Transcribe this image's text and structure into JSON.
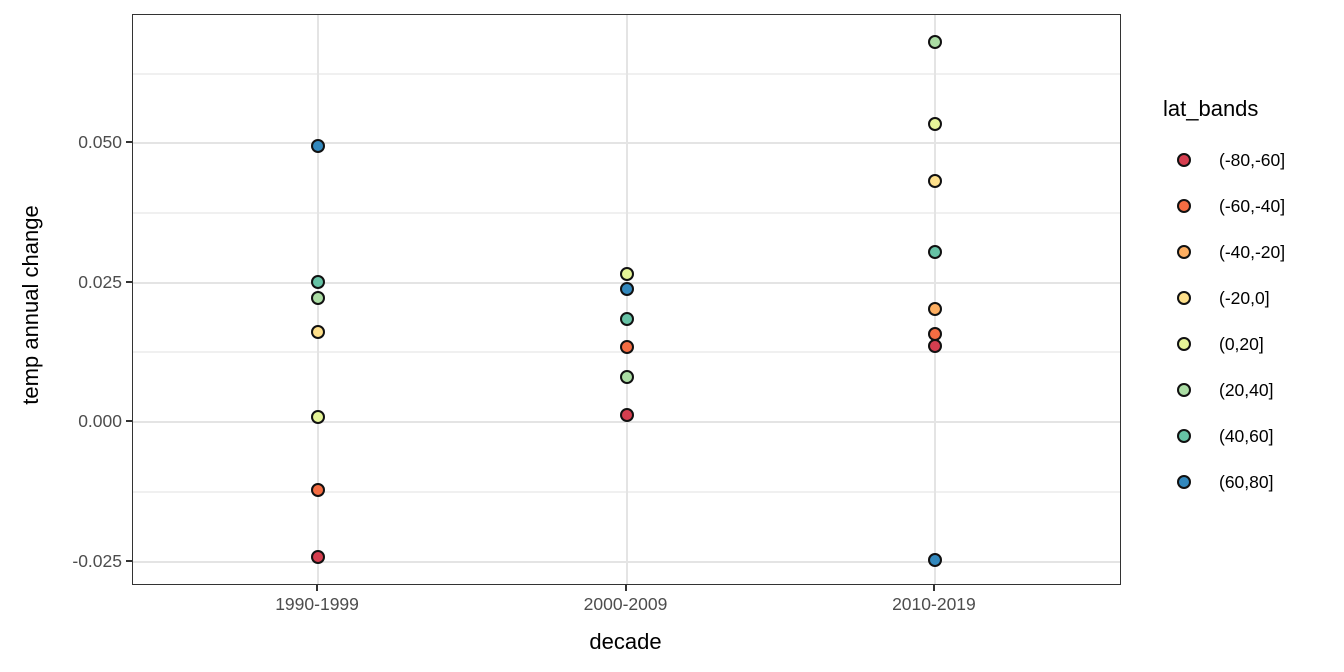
{
  "chart_data": {
    "type": "scatter",
    "title": "",
    "xlabel": "decade",
    "ylabel": "temp annual change",
    "legend_title": "lat_bands",
    "legend_position": "right",
    "grid": true,
    "categories": [
      "1990-1999",
      "2000-2009",
      "2010-2019"
    ],
    "ylim": [
      -0.029,
      0.073
    ],
    "y_major_ticks": [
      {
        "label": "0.050",
        "value": 0.05
      },
      {
        "label": "0.025",
        "value": 0.025
      },
      {
        "label": "0.000",
        "value": 0.0
      },
      {
        "label": "-0.025",
        "value": -0.025
      }
    ],
    "y_minor_values": [
      0.0625,
      0.0375,
      0.0125,
      -0.0125
    ],
    "series": [
      {
        "name": "(-80,-60]",
        "color": "#D53E4F",
        "points": [
          {
            "x": "1990-1999",
            "y": -0.0242
          },
          {
            "x": "2000-2009",
            "y": 0.0013
          },
          {
            "x": "2010-2019",
            "y": 0.0136
          }
        ]
      },
      {
        "name": "(-60,-40]",
        "color": "#F46D43",
        "points": [
          {
            "x": "1990-1999",
            "y": -0.0122
          },
          {
            "x": "2000-2009",
            "y": 0.0134
          },
          {
            "x": "2010-2019",
            "y": 0.0158
          }
        ]
      },
      {
        "name": "(-40,-20]",
        "color": "#FDAE61",
        "points": [
          {
            "x": "2010-2019",
            "y": 0.0203
          }
        ]
      },
      {
        "name": "(-20,0]",
        "color": "#FEE08B",
        "points": [
          {
            "x": "1990-1999",
            "y": 0.0161
          },
          {
            "x": "2010-2019",
            "y": 0.0432
          }
        ]
      },
      {
        "name": "(0,20]",
        "color": "#E6F598",
        "points": [
          {
            "x": "1990-1999",
            "y": 0.0009
          },
          {
            "x": "2000-2009",
            "y": 0.0265
          },
          {
            "x": "2010-2019",
            "y": 0.0534
          }
        ]
      },
      {
        "name": "(20,40]",
        "color": "#ABDDA4",
        "points": [
          {
            "x": "1990-1999",
            "y": 0.0222
          },
          {
            "x": "2000-2009",
            "y": 0.0081
          },
          {
            "x": "2010-2019",
            "y": 0.0681
          }
        ]
      },
      {
        "name": "(40,60]",
        "color": "#66C2A5",
        "points": [
          {
            "x": "1990-1999",
            "y": 0.0251
          },
          {
            "x": "2000-2009",
            "y": 0.0185
          },
          {
            "x": "2010-2019",
            "y": 0.0305
          }
        ]
      },
      {
        "name": "(60,80]",
        "color": "#3288BD",
        "points": [
          {
            "x": "1990-1999",
            "y": 0.0496
          },
          {
            "x": "2000-2009",
            "y": 0.0238
          },
          {
            "x": "2010-2019",
            "y": -0.0247
          }
        ]
      }
    ],
    "colors": {
      "grid_major": "#e4e4e4",
      "grid_minor": "#f0f0f0",
      "panel_border": "#333333",
      "tick_text": "#4d4d4d",
      "axis_title": "#000000",
      "point_stroke": "#111111",
      "background": "#ffffff"
    }
  }
}
